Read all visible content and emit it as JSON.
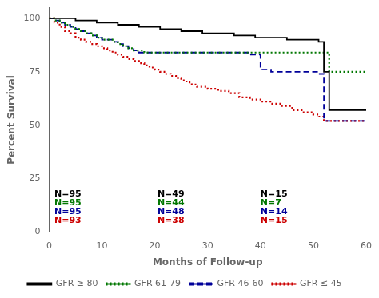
{
  "chart_data": {
    "type": "step",
    "title": "",
    "xlabel": "Months of Follow-up",
    "ylabel": "Percent Survival",
    "xlim": [
      0,
      60
    ],
    "ylim": [
      0,
      105
    ],
    "xticks": [
      0,
      10,
      20,
      30,
      40,
      50,
      60
    ],
    "yticks": [
      0,
      25,
      50,
      75,
      100
    ],
    "grid": false,
    "legend": "bottom",
    "series": [
      {
        "name": "GFR ≥ 80",
        "color": "#000000",
        "line_style": "solid",
        "x": [
          0,
          1,
          2,
          3,
          4,
          5,
          7,
          9,
          11,
          13,
          15,
          17,
          19,
          21,
          23,
          25,
          27,
          29,
          31,
          33,
          35,
          37,
          39,
          41,
          43,
          45,
          47,
          49,
          51,
          52,
          53,
          60
        ],
        "values": [
          100,
          100,
          100,
          100,
          100,
          99,
          99,
          98,
          98,
          97,
          97,
          96,
          96,
          95,
          95,
          94,
          94,
          93,
          93,
          93,
          92,
          92,
          91,
          91,
          91,
          90,
          90,
          90,
          89,
          75,
          57,
          57
        ]
      },
      {
        "name": "GFR 61-79",
        "color": "#007700",
        "line_style": "dotted",
        "x": [
          0,
          1,
          2,
          3,
          4,
          5,
          6,
          7,
          8,
          9,
          10,
          11,
          12,
          13,
          14,
          15,
          16,
          17,
          18,
          19,
          20,
          22,
          24,
          50,
          52,
          53,
          60
        ],
        "values": [
          100,
          99,
          98,
          97,
          96,
          95,
          94,
          93,
          92,
          91,
          90,
          90,
          89,
          88,
          87,
          86,
          85,
          85,
          84,
          84,
          84,
          84,
          84,
          84,
          84,
          75,
          75
        ]
      },
      {
        "name": "GFR 46-60",
        "color": "#000099",
        "line_style": "dashed",
        "x": [
          0,
          1,
          2,
          3,
          4,
          5,
          6,
          7,
          8,
          9,
          10,
          11,
          12,
          13,
          14,
          15,
          16,
          17,
          18,
          20,
          22,
          24,
          36,
          38,
          40,
          41,
          42,
          50,
          51,
          52,
          53,
          60
        ],
        "values": [
          100,
          99,
          98,
          97,
          96,
          95,
          94,
          93,
          92,
          91,
          90,
          90,
          89,
          88,
          87,
          86,
          85,
          84,
          84,
          84,
          84,
          84,
          84,
          83,
          76,
          76,
          75,
          75,
          74,
          52,
          52,
          52
        ]
      },
      {
        "name": "GFR ≤ 45",
        "color": "#CC0000",
        "line_style": "dotted",
        "x": [
          0,
          1,
          2,
          3,
          4,
          5,
          6,
          7,
          8,
          9,
          10,
          11,
          12,
          13,
          14,
          15,
          16,
          17,
          18,
          19,
          20,
          21,
          22,
          23,
          24,
          25,
          26,
          27,
          28,
          30,
          32,
          34,
          36,
          37,
          38,
          39,
          40,
          42,
          44,
          46,
          48,
          50,
          51,
          52,
          60
        ],
        "values": [
          100,
          98,
          96,
          94,
          93,
          91,
          90,
          89,
          88,
          87,
          86,
          85,
          84,
          83,
          82,
          81,
          80,
          79,
          78,
          77,
          76,
          75,
          74,
          73,
          72,
          71,
          70,
          69,
          68,
          67,
          66,
          65,
          63,
          63,
          62,
          62,
          61,
          60,
          59,
          57,
          56,
          55,
          54,
          52,
          52
        ]
      }
    ],
    "annotations": [
      {
        "text": "N=95",
        "x": 1.0,
        "y": 17.5,
        "color": "#000000"
      },
      {
        "text": "N=49",
        "x": 20.5,
        "y": 17.5,
        "color": "#000000"
      },
      {
        "text": "N=15",
        "x": 40.0,
        "y": 17.5,
        "color": "#000000"
      },
      {
        "text": "N=95",
        "x": 1.0,
        "y": 13.5,
        "color": "#007700"
      },
      {
        "text": "N=44",
        "x": 20.5,
        "y": 13.5,
        "color": "#007700"
      },
      {
        "text": "N=7",
        "x": 40.0,
        "y": 13.5,
        "color": "#007700"
      },
      {
        "text": "N=95",
        "x": 1.0,
        "y": 9.5,
        "color": "#000099"
      },
      {
        "text": "N=48",
        "x": 20.5,
        "y": 9.5,
        "color": "#000099"
      },
      {
        "text": "N=14",
        "x": 40.0,
        "y": 9.5,
        "color": "#000099"
      },
      {
        "text": "N=93",
        "x": 1.0,
        "y": 5.5,
        "color": "#CC0000"
      },
      {
        "text": "N=38",
        "x": 20.5,
        "y": 5.5,
        "color": "#CC0000"
      },
      {
        "text": "N=15",
        "x": 40.0,
        "y": 5.5,
        "color": "#CC0000"
      }
    ]
  }
}
